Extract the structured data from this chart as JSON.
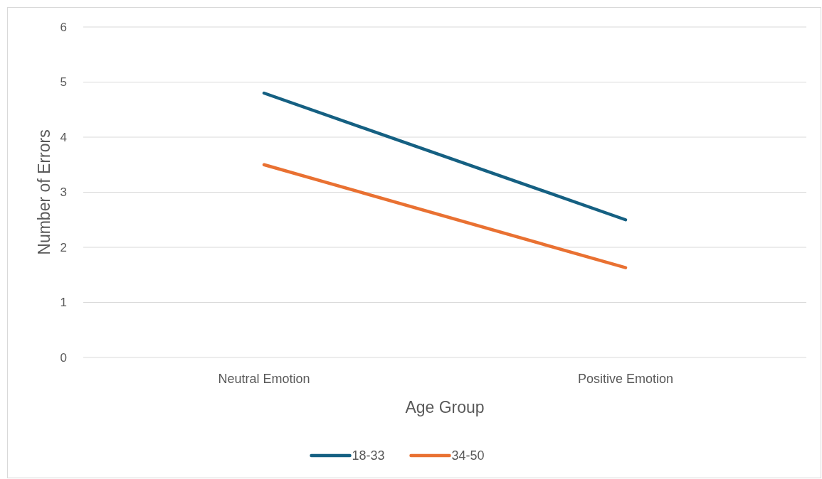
{
  "chart_data": {
    "type": "line",
    "xlabel": "Age Group",
    "ylabel": "Number of Errors",
    "categories": [
      "Neutral Emotion",
      "Positive Emotion"
    ],
    "series": [
      {
        "name": "18-33",
        "color": "#156082",
        "values": [
          4.8,
          2.5
        ]
      },
      {
        "name": "34-50",
        "color": "#e97132",
        "values": [
          3.5,
          1.63
        ]
      }
    ],
    "ylim": [
      0,
      6
    ],
    "yticks": [
      0,
      1,
      2,
      3,
      4,
      5,
      6
    ],
    "grid": "y",
    "legend": "bottom",
    "marker": "none",
    "line_style": "solid"
  }
}
